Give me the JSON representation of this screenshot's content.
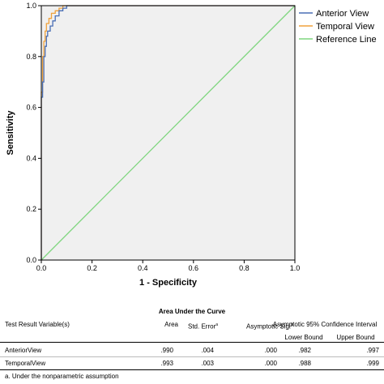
{
  "chart_data": {
    "type": "line",
    "xlabel": "1 - Specificity",
    "ylabel": "Sensitivity",
    "xlim": [
      0,
      1
    ],
    "ylim": [
      0,
      1
    ],
    "x_ticks": [
      "0.0",
      "0.2",
      "0.4",
      "0.6",
      "0.8",
      "1.0"
    ],
    "y_ticks": [
      "0.0",
      "0.2",
      "0.4",
      "0.6",
      "0.8",
      "1.0"
    ],
    "legend_position": "top-right",
    "grid": false,
    "series": [
      {
        "name": "Anterior View",
        "color": "#4a6fb5",
        "points": [
          [
            0,
            0
          ],
          [
            0,
            0.64
          ],
          [
            0.005,
            0.64
          ],
          [
            0.005,
            0.7
          ],
          [
            0.01,
            0.7
          ],
          [
            0.01,
            0.8
          ],
          [
            0.015,
            0.8
          ],
          [
            0.015,
            0.84
          ],
          [
            0.02,
            0.84
          ],
          [
            0.02,
            0.88
          ],
          [
            0.025,
            0.88
          ],
          [
            0.025,
            0.9
          ],
          [
            0.035,
            0.9
          ],
          [
            0.035,
            0.92
          ],
          [
            0.045,
            0.92
          ],
          [
            0.045,
            0.94
          ],
          [
            0.055,
            0.94
          ],
          [
            0.055,
            0.96
          ],
          [
            0.07,
            0.96
          ],
          [
            0.07,
            0.98
          ],
          [
            0.085,
            0.98
          ],
          [
            0.085,
            0.99
          ],
          [
            0.1,
            0.99
          ],
          [
            0.1,
            1.0
          ],
          [
            1.0,
            1.0
          ]
        ]
      },
      {
        "name": "Temporal View",
        "color": "#f0a23c",
        "points": [
          [
            0,
            0
          ],
          [
            0,
            0.66
          ],
          [
            0.005,
            0.66
          ],
          [
            0.005,
            0.8
          ],
          [
            0.01,
            0.8
          ],
          [
            0.01,
            0.86
          ],
          [
            0.015,
            0.86
          ],
          [
            0.015,
            0.9
          ],
          [
            0.02,
            0.9
          ],
          [
            0.02,
            0.93
          ],
          [
            0.03,
            0.93
          ],
          [
            0.03,
            0.95
          ],
          [
            0.04,
            0.95
          ],
          [
            0.04,
            0.97
          ],
          [
            0.055,
            0.97
          ],
          [
            0.055,
            0.98
          ],
          [
            0.07,
            0.98
          ],
          [
            0.07,
            0.99
          ],
          [
            0.085,
            0.99
          ],
          [
            0.085,
            1.0
          ],
          [
            1.0,
            1.0
          ]
        ]
      },
      {
        "name": "Reference Line",
        "color": "#7fd67f",
        "points": [
          [
            0,
            0
          ],
          [
            1,
            1
          ]
        ]
      }
    ],
    "plot_background": "#f0f0f0"
  },
  "table": {
    "title": "Area Under the Curve",
    "columns": {
      "variable": "Test Result Variable(s)",
      "area": "Area",
      "std_error": "Std. Error",
      "std_error_note": "a",
      "sig": "Asymptotic Sig.",
      "sig_note": "b",
      "ci": "Asymptotic 95% Confidence Interval",
      "lower": "Lower Bound",
      "upper": "Upper Bound"
    },
    "rows": [
      {
        "variable": "AnteriorView",
        "area": ".990",
        "std_error": ".004",
        "sig": ".000",
        "lower": ".982",
        "upper": ".997"
      },
      {
        "variable": "TemporalView",
        "area": ".993",
        "std_error": ".003",
        "sig": ".000",
        "lower": ".988",
        "upper": ".999"
      }
    ],
    "footnote": "a. Under the nonparametric assumption"
  }
}
